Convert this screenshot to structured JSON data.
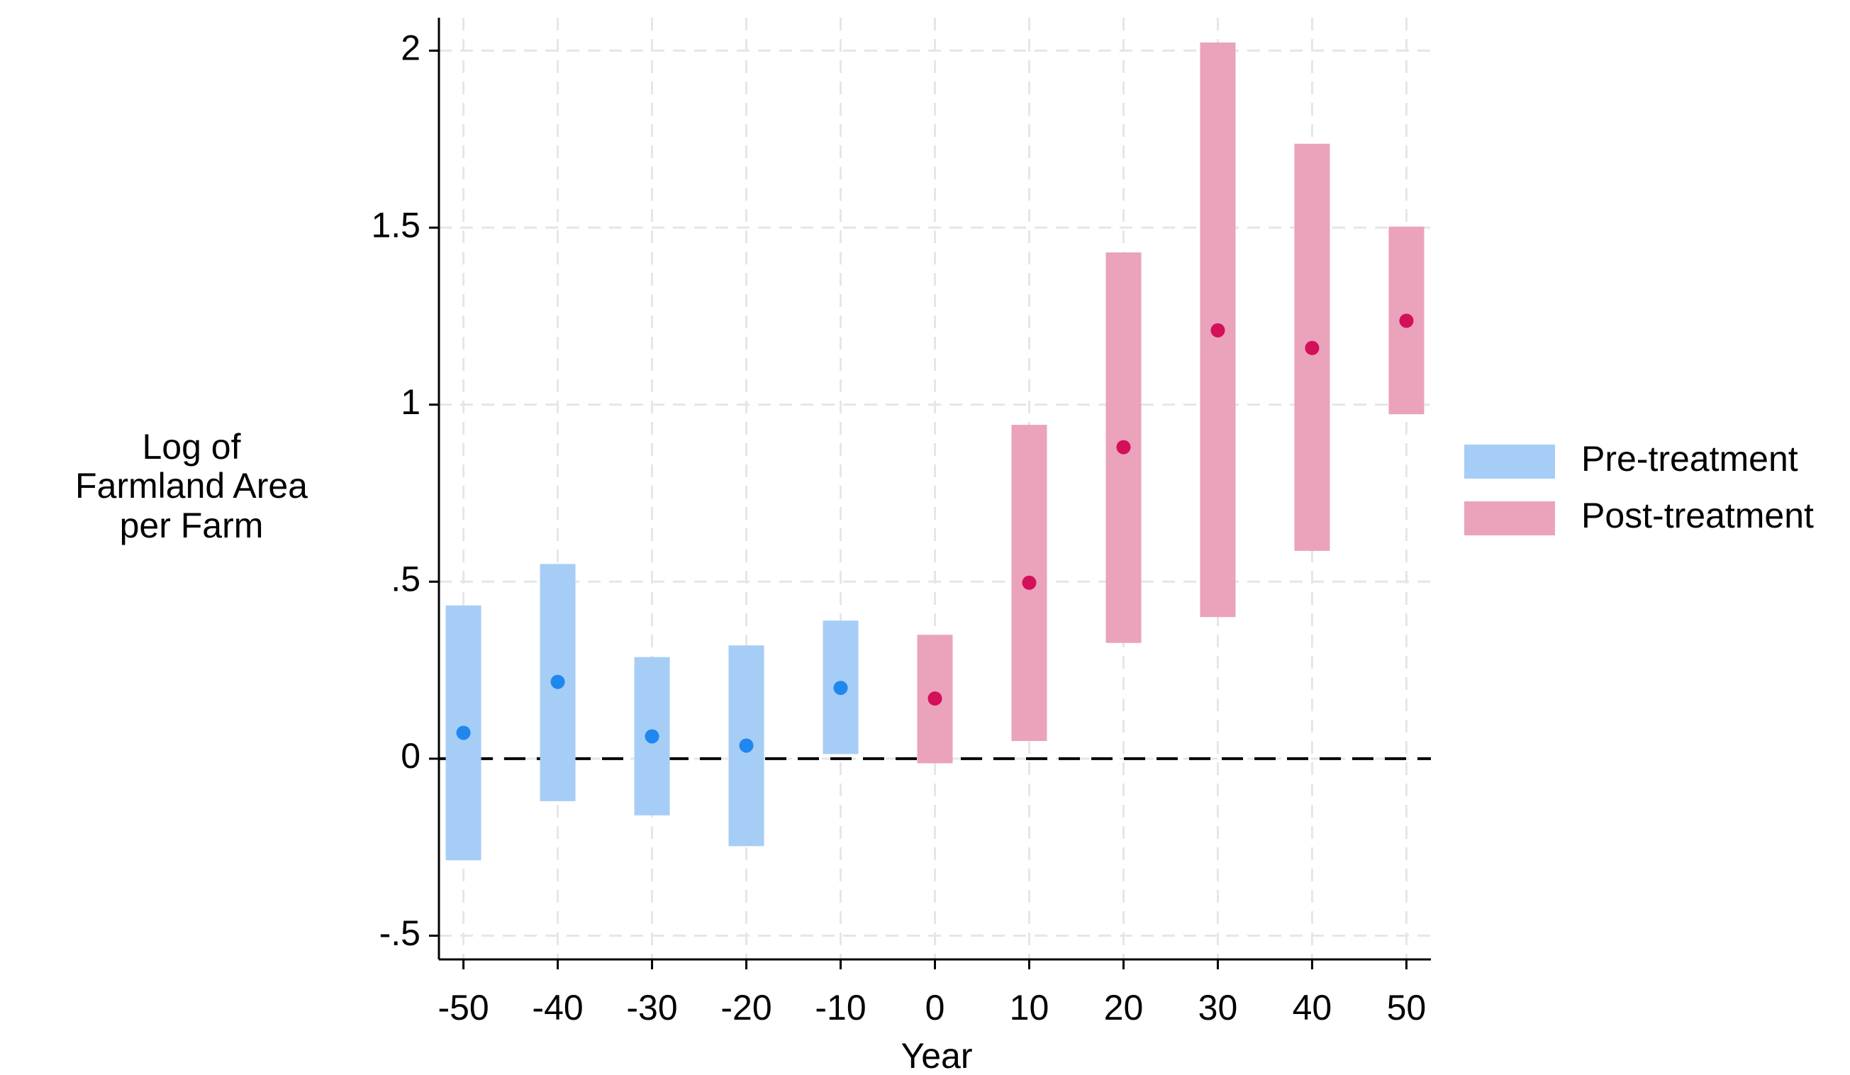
{
  "chart_data": {
    "type": "range",
    "xlabel": "Year",
    "ylabel": [
      "Log of",
      "Farmland Area",
      "per Farm"
    ],
    "xlim": [
      -52.6,
      52.6
    ],
    "ylim": [
      -0.567,
      2.093
    ],
    "xticks": [
      -50,
      -40,
      -30,
      -20,
      -10,
      0,
      10,
      20,
      30,
      40,
      50
    ],
    "yticks": [
      {
        "value": -0.5,
        "label": "-.5"
      },
      0,
      {
        "value": 0.5,
        "label": ".5"
      },
      1,
      1.5,
      2
    ],
    "grid": true,
    "reference_line": 0,
    "legend": "right",
    "series": [
      {
        "name": "Pre-treatment",
        "color": "#a6cdf5",
        "marker_color": "#1f87ee",
        "x": [
          -50,
          -40,
          -30,
          -20,
          -10
        ],
        "values": [
          0.073,
          0.217,
          0.063,
          0.037,
          0.2
        ],
        "lower": [
          -0.287,
          -0.12,
          -0.16,
          -0.247,
          0.013
        ],
        "upper": [
          0.433,
          0.55,
          0.287,
          0.32,
          0.39
        ]
      },
      {
        "name": "Post-treatment",
        "color": "#eba2bb",
        "marker_color": "#d3105a",
        "x": [
          0,
          10,
          20,
          30,
          40,
          50
        ],
        "values": [
          0.17,
          0.497,
          0.88,
          1.21,
          1.16,
          1.237
        ],
        "lower": [
          -0.013,
          0.05,
          0.327,
          0.4,
          0.587,
          0.973
        ],
        "upper": [
          0.35,
          0.943,
          1.43,
          2.023,
          1.737,
          1.503
        ]
      }
    ]
  }
}
